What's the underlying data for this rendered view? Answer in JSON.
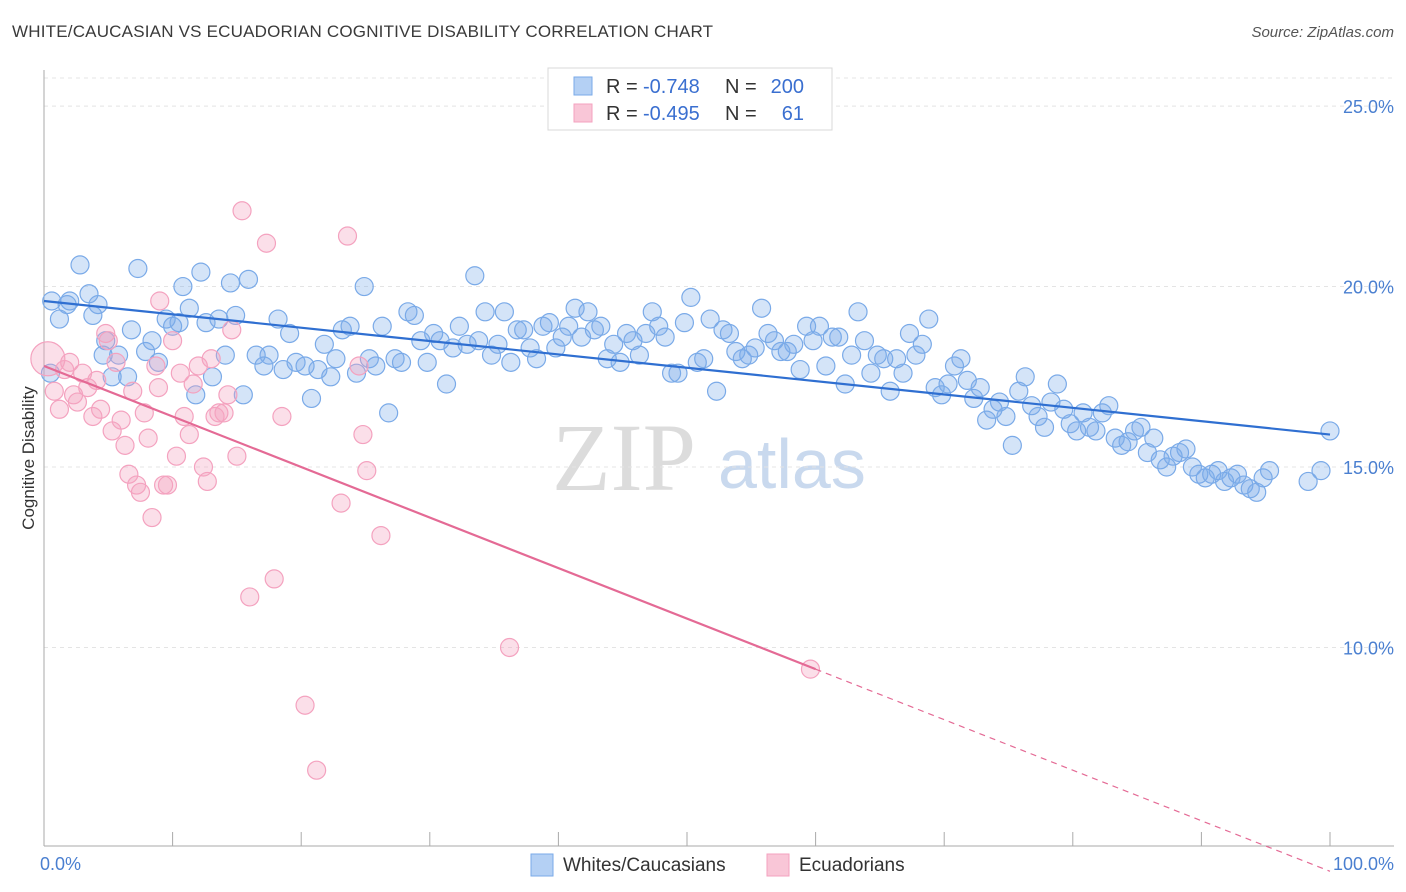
{
  "title": "WHITE/CAUCASIAN VS ECUADORIAN COGNITIVE DISABILITY CORRELATION CHART",
  "source": "Source: ZipAtlas.com",
  "watermark": {
    "zip": "ZIP",
    "atlas": "atlas"
  },
  "chart_data": {
    "type": "scatter",
    "ylabel": "Cognitive Disability",
    "xlim": [
      0,
      100
    ],
    "ylim": [
      4.5,
      26.0
    ],
    "x_tick_labels": {
      "left": "0.0%",
      "right": "100.0%"
    },
    "y_ticks": [
      {
        "value": 25.0,
        "label": "25.0%"
      },
      {
        "value": 20.0,
        "label": "20.0%"
      },
      {
        "value": 15.0,
        "label": "15.0%"
      },
      {
        "value": 10.0,
        "label": "10.0%"
      }
    ],
    "grid": true,
    "legend": {
      "position": "top-center",
      "rows": [
        {
          "r_label": "R =",
          "r_value": "-0.748",
          "n_label": "N =",
          "n_value": "200"
        },
        {
          "r_label": "R =",
          "r_value": "-0.495",
          "n_label": "N =",
          "n_value": "61"
        }
      ]
    },
    "series": [
      {
        "name": "Whites/Caucasians",
        "color": "#7aaae8",
        "line_color": "#2f6fd1",
        "trend": {
          "x0": 0,
          "y0": 19.6,
          "x1": 100,
          "y1": 15.9
        },
        "points": [
          [
            0.5,
            17.6
          ],
          [
            0.6,
            19.6
          ],
          [
            1.2,
            19.1
          ],
          [
            1.8,
            19.5
          ],
          [
            2,
            19.6
          ],
          [
            2.8,
            20.6
          ],
          [
            3.5,
            19.8
          ],
          [
            3.8,
            19.2
          ],
          [
            4.2,
            19.5
          ],
          [
            4.6,
            18.1
          ],
          [
            4.8,
            18.5
          ],
          [
            5.3,
            17.5
          ],
          [
            5.8,
            18.1
          ],
          [
            6.5,
            17.5
          ],
          [
            6.8,
            18.8
          ],
          [
            7.3,
            20.5
          ],
          [
            7.9,
            18.2
          ],
          [
            8.4,
            18.5
          ],
          [
            8.9,
            17.9
          ],
          [
            9.5,
            19.1
          ],
          [
            10,
            18.9
          ],
          [
            10.5,
            19.0
          ],
          [
            10.8,
            20.0
          ],
          [
            11.3,
            19.4
          ],
          [
            11.8,
            17.0
          ],
          [
            12.2,
            20.4
          ],
          [
            12.6,
            19.0
          ],
          [
            13.1,
            17.5
          ],
          [
            13.6,
            19.1
          ],
          [
            14.1,
            18.1
          ],
          [
            14.5,
            20.1
          ],
          [
            14.9,
            19.2
          ],
          [
            15.5,
            17.0
          ],
          [
            15.9,
            20.2
          ],
          [
            16.5,
            18.1
          ],
          [
            17.1,
            17.8
          ],
          [
            17.5,
            18.1
          ],
          [
            18.2,
            19.1
          ],
          [
            18.6,
            17.7
          ],
          [
            19.1,
            18.7
          ],
          [
            19.6,
            17.9
          ],
          [
            20.3,
            17.8
          ],
          [
            20.8,
            16.9
          ],
          [
            21.3,
            17.7
          ],
          [
            21.8,
            18.4
          ],
          [
            22.3,
            17.5
          ],
          [
            22.7,
            18.0
          ],
          [
            23.2,
            18.8
          ],
          [
            23.8,
            18.9
          ],
          [
            24.3,
            17.6
          ],
          [
            24.9,
            20.0
          ],
          [
            25.3,
            18.0
          ],
          [
            25.8,
            17.8
          ],
          [
            26.3,
            18.9
          ],
          [
            26.8,
            16.5
          ],
          [
            27.3,
            18.0
          ],
          [
            27.8,
            17.9
          ],
          [
            28.3,
            19.3
          ],
          [
            28.8,
            19.2
          ],
          [
            29.3,
            18.5
          ],
          [
            29.8,
            17.9
          ],
          [
            30.3,
            18.7
          ],
          [
            30.8,
            18.5
          ],
          [
            31.3,
            17.3
          ],
          [
            31.8,
            18.3
          ],
          [
            32.3,
            18.9
          ],
          [
            32.9,
            18.4
          ],
          [
            33.5,
            20.3
          ],
          [
            33.8,
            18.5
          ],
          [
            34.3,
            19.3
          ],
          [
            34.8,
            18.1
          ],
          [
            35.3,
            18.4
          ],
          [
            35.8,
            19.3
          ],
          [
            36.3,
            17.9
          ],
          [
            36.8,
            18.8
          ],
          [
            37.3,
            18.8
          ],
          [
            37.8,
            18.3
          ],
          [
            38.3,
            18.0
          ],
          [
            38.8,
            18.9
          ],
          [
            39.3,
            19.0
          ],
          [
            39.8,
            18.3
          ],
          [
            40.3,
            18.6
          ],
          [
            40.8,
            18.9
          ],
          [
            41.3,
            19.4
          ],
          [
            41.8,
            18.6
          ],
          [
            42.3,
            19.3
          ],
          [
            42.8,
            18.8
          ],
          [
            43.3,
            18.9
          ],
          [
            43.8,
            18.0
          ],
          [
            44.3,
            18.4
          ],
          [
            44.8,
            17.9
          ],
          [
            45.3,
            18.7
          ],
          [
            45.8,
            18.5
          ],
          [
            46.3,
            18.1
          ],
          [
            46.8,
            18.7
          ],
          [
            47.3,
            19.3
          ],
          [
            47.8,
            18.9
          ],
          [
            48.3,
            18.6
          ],
          [
            48.8,
            17.6
          ],
          [
            49.3,
            17.6
          ],
          [
            49.8,
            19.0
          ],
          [
            50.3,
            19.7
          ],
          [
            50.8,
            17.9
          ],
          [
            51.3,
            18.0
          ],
          [
            51.8,
            19.1
          ],
          [
            52.3,
            17.1
          ],
          [
            52.8,
            18.8
          ],
          [
            53.3,
            18.7
          ],
          [
            53.8,
            18.2
          ],
          [
            54.3,
            18.0
          ],
          [
            54.8,
            18.1
          ],
          [
            55.3,
            18.3
          ],
          [
            55.8,
            19.4
          ],
          [
            56.3,
            18.7
          ],
          [
            56.8,
            18.5
          ],
          [
            57.3,
            18.2
          ],
          [
            57.8,
            18.2
          ],
          [
            58.3,
            18.4
          ],
          [
            58.8,
            17.7
          ],
          [
            59.3,
            18.9
          ],
          [
            59.8,
            18.5
          ],
          [
            60.3,
            18.9
          ],
          [
            60.8,
            17.8
          ],
          [
            61.3,
            18.6
          ],
          [
            61.8,
            18.6
          ],
          [
            62.3,
            17.3
          ],
          [
            62.8,
            18.1
          ],
          [
            63.3,
            19.3
          ],
          [
            63.8,
            18.5
          ],
          [
            64.3,
            17.6
          ],
          [
            64.8,
            18.1
          ],
          [
            65.3,
            18.0
          ],
          [
            65.8,
            17.1
          ],
          [
            66.3,
            18.0
          ],
          [
            66.8,
            17.6
          ],
          [
            67.3,
            18.7
          ],
          [
            67.8,
            18.1
          ],
          [
            68.3,
            18.4
          ],
          [
            68.8,
            19.1
          ],
          [
            69.3,
            17.2
          ],
          [
            69.8,
            17.0
          ],
          [
            70.3,
            17.3
          ],
          [
            70.8,
            17.8
          ],
          [
            71.3,
            18.0
          ],
          [
            71.8,
            17.4
          ],
          [
            72.3,
            16.9
          ],
          [
            72.8,
            17.2
          ],
          [
            73.3,
            16.3
          ],
          [
            73.8,
            16.6
          ],
          [
            74.3,
            16.8
          ],
          [
            74.8,
            16.4
          ],
          [
            75.3,
            15.6
          ],
          [
            75.8,
            17.1
          ],
          [
            76.3,
            17.5
          ],
          [
            76.8,
            16.7
          ],
          [
            77.3,
            16.4
          ],
          [
            77.8,
            16.1
          ],
          [
            78.3,
            16.8
          ],
          [
            78.8,
            17.3
          ],
          [
            79.3,
            16.6
          ],
          [
            79.8,
            16.2
          ],
          [
            80.3,
            16.0
          ],
          [
            80.8,
            16.5
          ],
          [
            81.3,
            16.1
          ],
          [
            81.8,
            16.0
          ],
          [
            82.3,
            16.5
          ],
          [
            82.8,
            16.7
          ],
          [
            83.3,
            15.8
          ],
          [
            83.8,
            15.6
          ],
          [
            84.3,
            15.7
          ],
          [
            84.8,
            16.0
          ],
          [
            85.3,
            16.1
          ],
          [
            85.8,
            15.4
          ],
          [
            86.3,
            15.8
          ],
          [
            86.8,
            15.2
          ],
          [
            87.3,
            15.0
          ],
          [
            87.8,
            15.3
          ],
          [
            88.3,
            15.4
          ],
          [
            88.8,
            15.5
          ],
          [
            89.3,
            15.0
          ],
          [
            89.8,
            14.8
          ],
          [
            90.3,
            14.7
          ],
          [
            90.8,
            14.8
          ],
          [
            91.3,
            14.9
          ],
          [
            91.8,
            14.6
          ],
          [
            92.3,
            14.7
          ],
          [
            92.8,
            14.8
          ],
          [
            93.3,
            14.5
          ],
          [
            93.8,
            14.4
          ],
          [
            94.3,
            14.3
          ],
          [
            94.8,
            14.7
          ],
          [
            95.3,
            14.9
          ],
          [
            98.3,
            14.6
          ],
          [
            99.3,
            14.9
          ],
          [
            100,
            16.0
          ]
        ]
      },
      {
        "name": "Ecuadorians",
        "color": "#f4a2bf",
        "line_color": "#e46a95",
        "trend": {
          "x0": 0,
          "y0": 17.8,
          "x1": 60,
          "y1": 9.4
        },
        "trend_extended": {
          "x0": 60,
          "y0": 9.4,
          "x1": 100,
          "y1": 3.8
        },
        "points": [
          [
            0.3,
            18.0
          ],
          [
            0.8,
            17.1
          ],
          [
            1.2,
            16.6
          ],
          [
            1.6,
            17.7
          ],
          [
            2.0,
            17.9
          ],
          [
            2.3,
            17.0
          ],
          [
            2.6,
            16.8
          ],
          [
            3.0,
            17.6
          ],
          [
            3.4,
            17.2
          ],
          [
            3.8,
            16.4
          ],
          [
            4.1,
            17.4
          ],
          [
            4.4,
            16.6
          ],
          [
            4.8,
            18.7
          ],
          [
            5.0,
            18.5
          ],
          [
            5.3,
            16.0
          ],
          [
            5.6,
            17.9
          ],
          [
            6.0,
            16.3
          ],
          [
            6.3,
            15.6
          ],
          [
            6.6,
            14.8
          ],
          [
            6.9,
            17.1
          ],
          [
            7.2,
            14.5
          ],
          [
            7.5,
            14.3
          ],
          [
            7.8,
            16.5
          ],
          [
            8.1,
            15.8
          ],
          [
            8.4,
            13.6
          ],
          [
            8.7,
            17.8
          ],
          [
            9.0,
            19.6
          ],
          [
            9.3,
            14.5
          ],
          [
            9.6,
            14.5
          ],
          [
            10.0,
            18.5
          ],
          [
            10.3,
            15.3
          ],
          [
            10.6,
            17.6
          ],
          [
            10.9,
            16.4
          ],
          [
            11.3,
            15.9
          ],
          [
            11.6,
            17.3
          ],
          [
            12.0,
            17.8
          ],
          [
            12.4,
            15.0
          ],
          [
            12.7,
            14.6
          ],
          [
            13.0,
            18.0
          ],
          [
            13.3,
            16.4
          ],
          [
            13.6,
            16.5
          ],
          [
            14.0,
            16.5
          ],
          [
            14.3,
            17.0
          ],
          [
            14.6,
            18.8
          ],
          [
            15.0,
            15.3
          ],
          [
            15.4,
            22.1
          ],
          [
            16.0,
            11.4
          ],
          [
            17.3,
            21.2
          ],
          [
            17.9,
            11.9
          ],
          [
            18.5,
            16.4
          ],
          [
            20.3,
            8.4
          ],
          [
            21.2,
            6.6
          ],
          [
            23.1,
            14.0
          ],
          [
            23.6,
            21.4
          ],
          [
            24.5,
            17.8
          ],
          [
            24.8,
            15.9
          ],
          [
            25.1,
            14.9
          ],
          [
            26.2,
            13.1
          ],
          [
            36.2,
            10.0
          ],
          [
            59.6,
            9.4
          ],
          [
            8.9,
            17.2
          ]
        ]
      }
    ]
  }
}
